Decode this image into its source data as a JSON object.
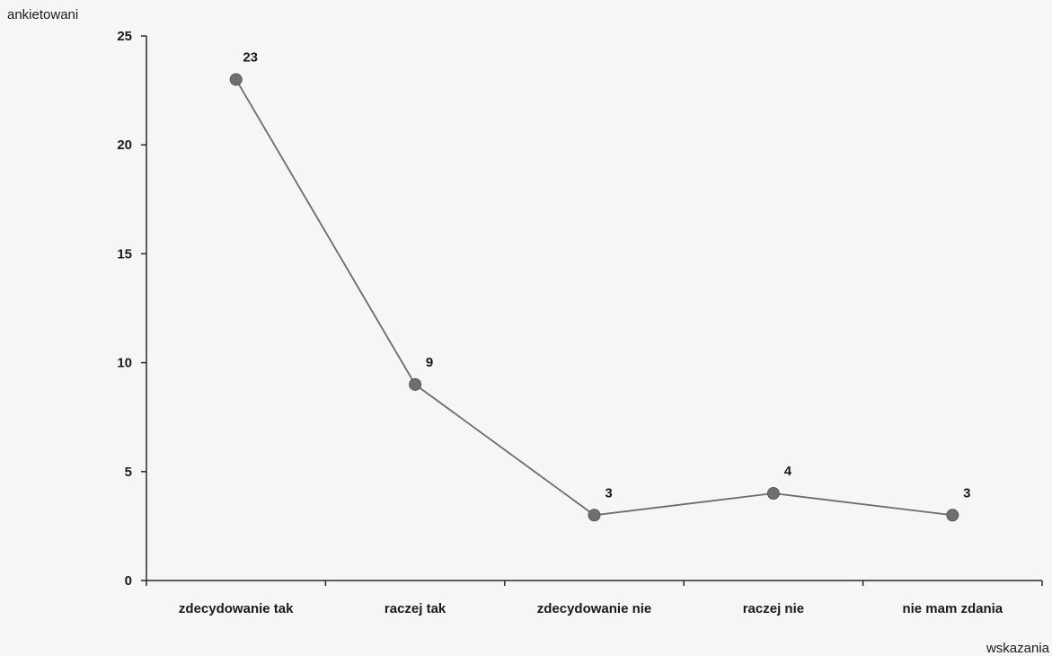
{
  "chart_data": {
    "type": "line",
    "categories": [
      "zdecydowanie tak",
      "raczej tak",
      "zdecydowanie nie",
      "raczej nie",
      "nie mam zdania"
    ],
    "values": [
      23,
      9,
      3,
      4,
      3
    ],
    "data_labels": [
      "23",
      "9",
      "3",
      "4",
      "3"
    ],
    "ylabel": "ankietowani",
    "xlabel": "wskazania",
    "ylim": [
      0,
      25
    ],
    "yticks": [
      0,
      5,
      10,
      15,
      20,
      25
    ],
    "grid": false,
    "legend": "none",
    "line_color": "#6b6b6b",
    "marker_color": "#6f6f6f",
    "axis_color": "#2a2a2a"
  }
}
